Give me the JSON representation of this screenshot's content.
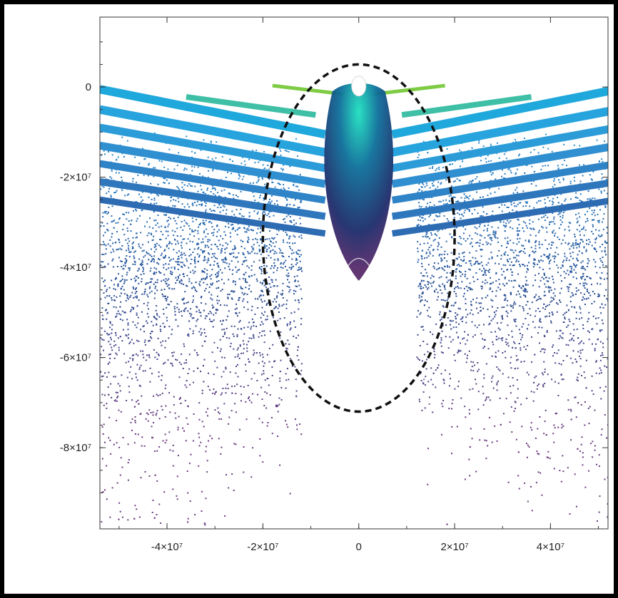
{
  "chart_data": {
    "type": "scatter",
    "title": "",
    "xlabel": "",
    "ylabel": "",
    "xlim": [
      -54000000.0,
      52000000.0
    ],
    "ylim": [
      -98000000.0,
      15500000.0
    ],
    "x_ticks": [
      {
        "value": -40000000.0,
        "label": "-4×10⁷"
      },
      {
        "value": -20000000.0,
        "label": "-2×10⁷"
      },
      {
        "value": 0,
        "label": "0"
      },
      {
        "value": 20000000.0,
        "label": "2×10⁷"
      },
      {
        "value": 40000000.0,
        "label": "4×10⁷"
      }
    ],
    "y_ticks": [
      {
        "value": 0,
        "label": "0"
      },
      {
        "value": -20000000.0,
        "label": "-2×10⁷"
      },
      {
        "value": -40000000.0,
        "label": "-4×10⁷"
      },
      {
        "value": -60000000.0,
        "label": "-6×10⁷"
      },
      {
        "value": -80000000.0,
        "label": "-8×10⁷"
      }
    ],
    "grid": false,
    "legend": "none",
    "colors": {
      "top_band": "#8fd14f",
      "upper_bands": "#29b6e8",
      "mid": "#2f6fb3",
      "lower": "#6a3a7d",
      "core": "#0b4d78",
      "ellipse": "#111111"
    },
    "series": [
      {
        "marker": "band",
        "points": [
          [
            -36000000.0,
            -2000000.0
          ],
          [
            -24000000.0,
            -4000000.0
          ],
          [
            -12000000.0,
            -6200000.0
          ],
          [
            0,
            -7000000.0
          ],
          [
            12000000.0,
            -6200000.0
          ],
          [
            24000000.0,
            -4000000.0
          ],
          [
            36000000.0,
            -2000000.0
          ]
        ]
      },
      {
        "marker": "band",
        "points": [
          [
            -54000000.0,
            -4000000.0
          ],
          [
            -30000000.0,
            -8000000.0
          ],
          [
            0,
            -10500000.0
          ],
          [
            30000000.0,
            -8000000.0
          ],
          [
            52000000.0,
            -4000000.0
          ]
        ]
      },
      {
        "marker": "points",
        "points": [
          [
            -48000000.0,
            -35000000.0
          ],
          [
            -25000000.0,
            -45000000.0
          ],
          [
            25000000.0,
            -45000000.0
          ],
          [
            48000000.0,
            -35000000.0
          ],
          [
            -35000000.0,
            -65000000.0
          ],
          [
            35000000.0,
            -65000000.0
          ],
          [
            -45000000.0,
            -90000000.0
          ],
          [
            45000000.0,
            -90000000.0
          ]
        ]
      },
      {
        "marker": "points",
        "points": [
          [
            0,
            -1000000.0
          ],
          [
            0,
            -10000000.0
          ],
          [
            0,
            -20000000.0
          ],
          [
            0,
            -30000000.0
          ],
          [
            0,
            -43000000.0
          ]
        ]
      }
    ],
    "annotations": [
      {
        "shape": "dashed-ellipse",
        "center": [
          0,
          -33500000.0
        ],
        "rx": 20000000.0,
        "ry": 38500000.0
      }
    ]
  }
}
